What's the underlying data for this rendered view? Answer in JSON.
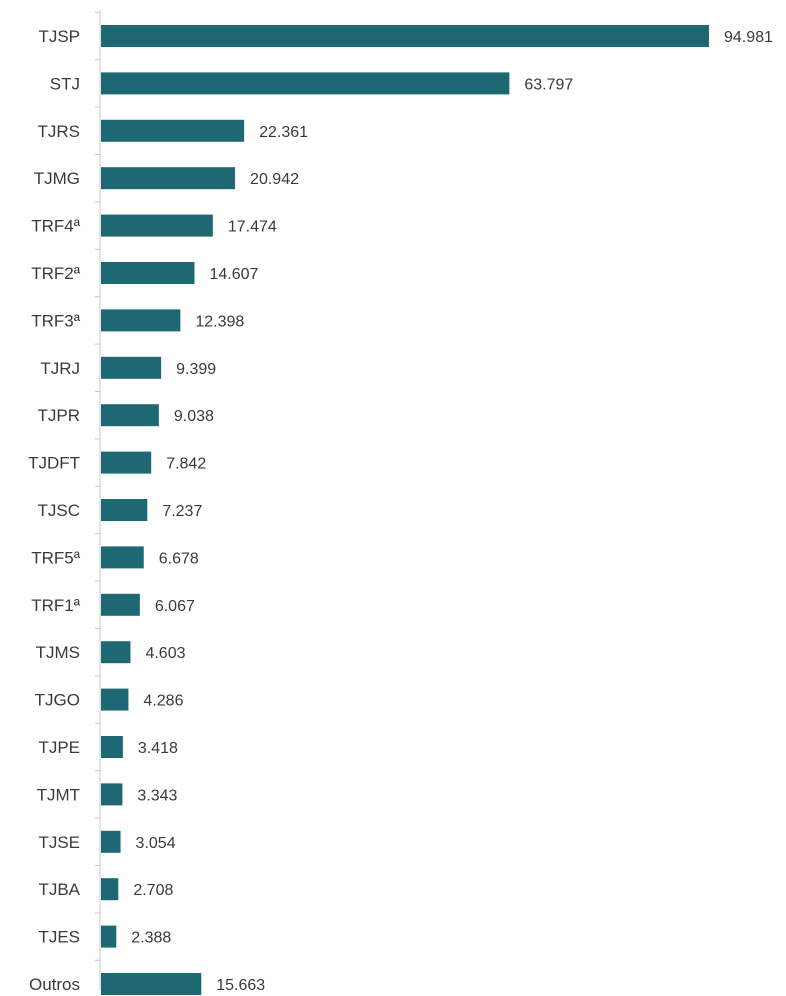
{
  "chart_data": {
    "type": "bar",
    "orientation": "horizontal",
    "categories": [
      "TJSP",
      "STJ",
      "TJRS",
      "TJMG",
      "TRF4ª",
      "TRF2ª",
      "TRF3ª",
      "TJRJ",
      "TJPR",
      "TJDFT",
      "TJSC",
      "TRF5ª",
      "TRF1ª",
      "TJMS",
      "TJGO",
      "TJPE",
      "TJMT",
      "TJSE",
      "TJBA",
      "TJES",
      "Outros"
    ],
    "values": [
      94981,
      63797,
      22361,
      20942,
      17474,
      14607,
      12398,
      9399,
      9038,
      7842,
      7237,
      6678,
      6067,
      4603,
      4286,
      3418,
      3343,
      3054,
      2708,
      2388,
      15663
    ],
    "value_labels": [
      "94.981",
      "63.797",
      "22.361",
      "20.942",
      "17.474",
      "14.607",
      "12.398",
      "9.399",
      "9.038",
      "7.842",
      "7.237",
      "6.678",
      "6.067",
      "4.603",
      "4.286",
      "3.418",
      "3.343",
      "3.054",
      "2.708",
      "2.388",
      "15.663"
    ],
    "title": "",
    "xlabel": "",
    "ylabel": "",
    "xlim": [
      0,
      94981
    ],
    "grid": false,
    "legend": "none",
    "colors": {
      "bar": "#1e6873",
      "axis": "#c8c8c8",
      "text": "#3a3a3a"
    }
  }
}
